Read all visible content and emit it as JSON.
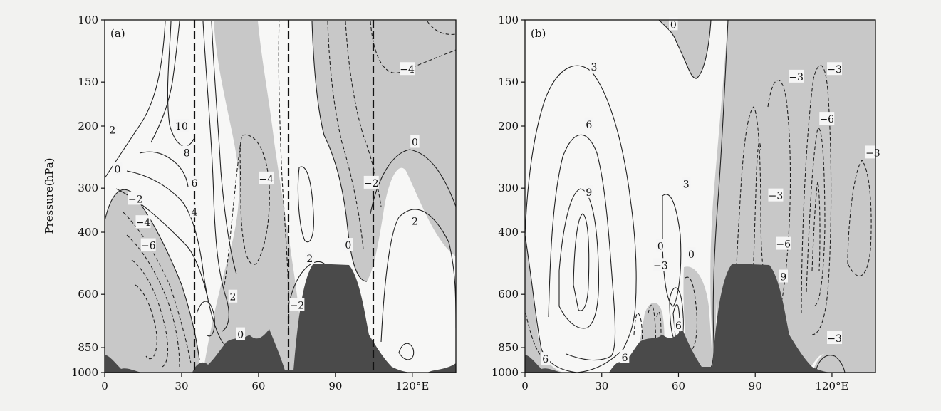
{
  "chart_data": [
    {
      "type": "contour",
      "panel": "(a)",
      "xlabel": "",
      "ylabel": "Pressure(hPa)",
      "x_ticks": [
        "0",
        "30",
        "60",
        "90",
        "120°E"
      ],
      "x_range": [
        0,
        137
      ],
      "y_ticks": [
        "100",
        "150",
        "200",
        "300",
        "400",
        "600",
        "850",
        "1000"
      ],
      "y_log_scale": true,
      "y_range": [
        100,
        1000
      ],
      "contour_interval": 2,
      "negative_contours_dashed": true,
      "negative_regions_shaded": true,
      "terrain_shaded": true,
      "cross_section_longitudes": [
        35,
        73,
        107
      ],
      "contour_labels": [
        {
          "text": "2",
          "lon": 3,
          "p": 205
        },
        {
          "text": "0",
          "lon": 5,
          "p": 265
        },
        {
          "text": "10",
          "lon": 30,
          "p": 200
        },
        {
          "text": "8",
          "lon": 32,
          "p": 238
        },
        {
          "text": "6",
          "lon": 35,
          "p": 290
        },
        {
          "text": "4",
          "lon": 35,
          "p": 350
        },
        {
          "text": "-2",
          "lon": 12,
          "p": 322
        },
        {
          "text": "-4",
          "lon": 15,
          "p": 375
        },
        {
          "text": "-6",
          "lon": 17,
          "p": 436
        },
        {
          "text": "-4",
          "lon": 63,
          "p": 282
        },
        {
          "text": "2",
          "lon": 50,
          "p": 610
        },
        {
          "text": "0",
          "lon": 53,
          "p": 780
        },
        {
          "text": "-2",
          "lon": 75,
          "p": 645
        },
        {
          "text": "2",
          "lon": 80,
          "p": 475
        },
        {
          "text": "0",
          "lon": 95,
          "p": 435
        },
        {
          "text": "-4",
          "lon": 118,
          "p": 138
        },
        {
          "text": "0",
          "lon": 121,
          "p": 222
        },
        {
          "text": "-2",
          "lon": 104,
          "p": 290
        },
        {
          "text": "2",
          "lon": 121,
          "p": 372
        }
      ]
    },
    {
      "type": "contour",
      "panel": "(b)",
      "xlabel": "",
      "ylabel": "",
      "x_ticks": [
        "0",
        "30",
        "60",
        "90",
        "120°E"
      ],
      "x_range": [
        0,
        137
      ],
      "y_ticks": [
        "100",
        "150",
        "200",
        "300",
        "400",
        "600",
        "850",
        "1000"
      ],
      "y_log_scale": true,
      "y_range": [
        100,
        1000
      ],
      "contour_interval": 3,
      "negative_contours_dashed": true,
      "negative_regions_shaded": true,
      "terrain_shaded": true,
      "contour_labels": [
        {
          "text": "0",
          "lon": 58,
          "p": 103
        },
        {
          "text": "3",
          "lon": 27,
          "p": 136
        },
        {
          "text": "6",
          "lon": 25,
          "p": 198
        },
        {
          "text": "9",
          "lon": 25,
          "p": 308
        },
        {
          "text": "-3",
          "lon": 106,
          "p": 145
        },
        {
          "text": "-3",
          "lon": 121,
          "p": 138
        },
        {
          "text": "-6",
          "lon": 118,
          "p": 191
        },
        {
          "text": "-3",
          "lon": 136,
          "p": 238
        },
        {
          "text": "-3",
          "lon": 98,
          "p": 315
        },
        {
          "text": "3",
          "lon": 63,
          "p": 292
        },
        {
          "text": "0",
          "lon": 53,
          "p": 438
        },
        {
          "text": "-3",
          "lon": 53,
          "p": 496
        },
        {
          "text": "0",
          "lon": 65,
          "p": 462
        },
        {
          "text": "-6",
          "lon": 101,
          "p": 432
        },
        {
          "text": "9",
          "lon": 101,
          "p": 535
        },
        {
          "text": "6",
          "lon": 60,
          "p": 735
        },
        {
          "text": "6",
          "lon": 39,
          "p": 906
        },
        {
          "text": "6",
          "lon": 8,
          "p": 916
        },
        {
          "text": "-3",
          "lon": 121,
          "p": 800
        }
      ]
    }
  ]
}
